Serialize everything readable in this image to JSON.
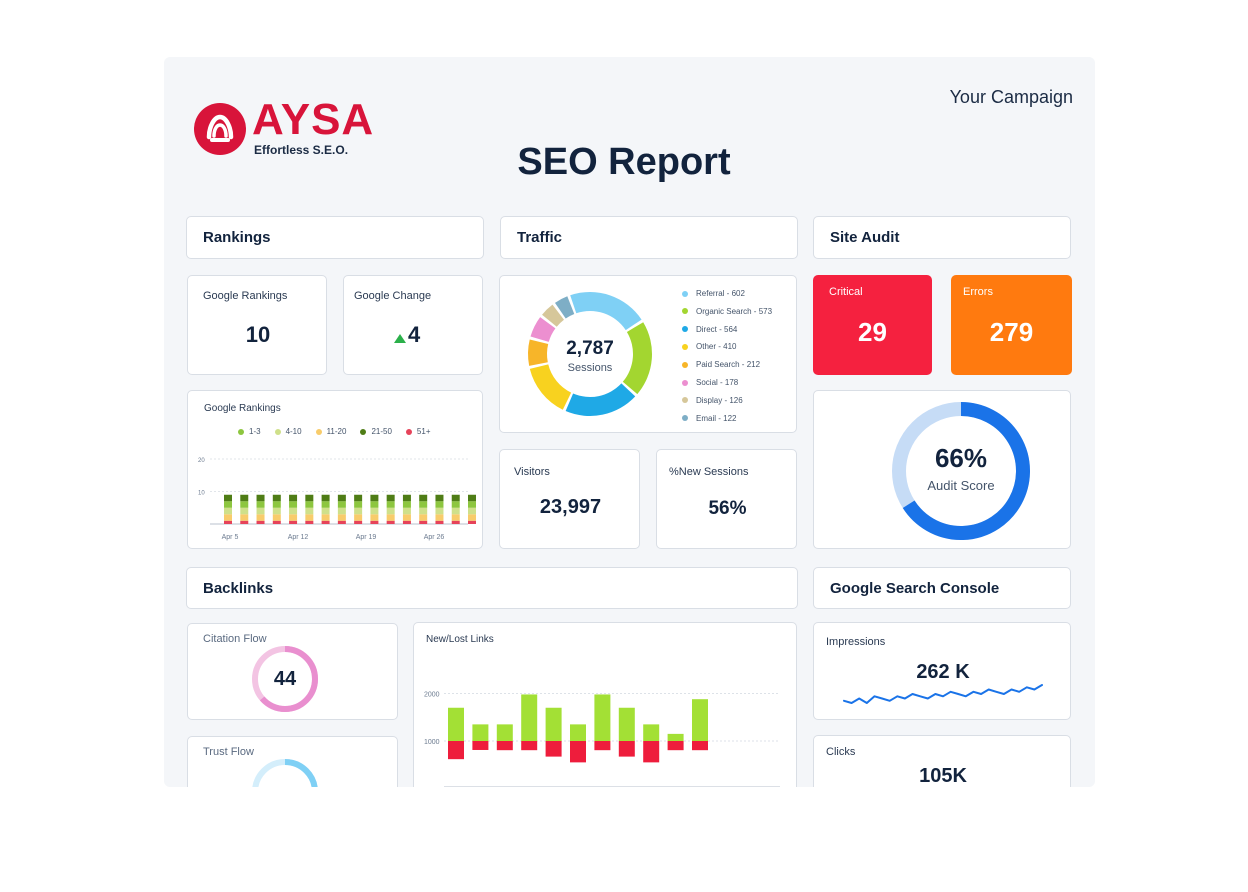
{
  "brand": {
    "name": "AYSA",
    "tagline": "Effortless S.E.O.",
    "color": "#d8143a"
  },
  "campaign_label": "Your Campaign",
  "title": "SEO Report",
  "sections": {
    "rankings": "Rankings",
    "traffic": "Traffic",
    "site_audit": "Site Audit",
    "backlinks": "Backlinks",
    "gsc": "Google Search Console"
  },
  "rankings": {
    "google_rankings": {
      "label": "Google Rankings",
      "value": "10"
    },
    "google_change": {
      "label": "Google Change",
      "value": "4",
      "direction": "up"
    },
    "chart_title": "Google Rankings",
    "legend": [
      {
        "label": "1-3",
        "color": "#8dc63f"
      },
      {
        "label": "4-10",
        "color": "#cfe08a"
      },
      {
        "label": "11-20",
        "color": "#f8cc6b"
      },
      {
        "label": "21-50",
        "color": "#4f7d16"
      },
      {
        "label": "51+",
        "color": "#e6435a"
      }
    ]
  },
  "traffic": {
    "sessions_value": "2,787",
    "sessions_label": "Sessions",
    "visitors": {
      "label": "Visitors",
      "value": "23,997"
    },
    "new_sessions": {
      "label": "%New Sessions",
      "value": "56%"
    }
  },
  "site_audit": {
    "critical": {
      "label": "Critical",
      "value": "29",
      "color": "#f5213f"
    },
    "errors": {
      "label": "Errors",
      "value": "279",
      "color": "#ff7a0f"
    },
    "score_value": "66%",
    "score_label": "Audit Score",
    "score": 0.66
  },
  "backlinks": {
    "citation_flow": {
      "label": "Citation Flow",
      "value": "44"
    },
    "trust_flow": {
      "label": "Trust Flow"
    },
    "chart_title": "New/Lost Links"
  },
  "gsc": {
    "impressions": {
      "label": "Impressions",
      "value": "262 K"
    },
    "clicks": {
      "label": "Clicks",
      "value": "105K"
    }
  },
  "chart_data": [
    {
      "type": "pie",
      "categories": [
        "Referral - 602",
        "Organic Search - 573",
        "Direct - 564",
        "Other - 410",
        "Paid Search - 212",
        "Social - 178",
        "Display - 126",
        "Email - 122"
      ],
      "values": [
        602,
        573,
        564,
        410,
        212,
        178,
        126,
        122
      ],
      "colors": [
        "#7fd0f5",
        "#a3d630",
        "#1fa9e6",
        "#f8d21f",
        "#f7b529",
        "#ec8fd0",
        "#d6c79a",
        "#7eaec6"
      ]
    },
    {
      "type": "bar",
      "title": "Google Rankings",
      "categories": [
        "",
        "",
        "",
        "",
        "",
        "",
        "",
        "",
        "",
        "",
        "",
        "",
        "",
        "",
        "",
        ""
      ],
      "tick_labels": [
        "Apr 5",
        "Apr 12",
        "Apr 19",
        "Apr 26"
      ],
      "ylim": [
        0,
        24
      ],
      "yticks": [
        10,
        20
      ],
      "series": [
        {
          "name": "51+",
          "values": [
            1,
            1,
            1,
            1,
            1,
            1,
            1,
            1,
            1,
            1,
            1,
            1,
            1,
            1,
            1,
            1
          ]
        },
        {
          "name": "11-20",
          "values": [
            2,
            2,
            2,
            2,
            2,
            2,
            2,
            2,
            2,
            2,
            2,
            2,
            2,
            2,
            2,
            2
          ]
        },
        {
          "name": "4-10",
          "values": [
            2,
            2,
            2,
            2,
            2,
            2,
            2,
            2,
            2,
            2,
            2,
            2,
            2,
            2,
            2,
            2
          ]
        },
        {
          "name": "1-3",
          "values": [
            2,
            2,
            2,
            2,
            2,
            2,
            2,
            2,
            2,
            2,
            2,
            2,
            2,
            2,
            2,
            2
          ]
        },
        {
          "name": "21-50",
          "values": [
            2,
            2,
            2,
            2,
            2,
            2,
            2,
            2,
            2,
            2,
            2,
            2,
            2,
            2,
            2,
            2
          ]
        }
      ]
    },
    {
      "type": "bar",
      "title": "New/Lost Links",
      "categories": [
        "",
        "",
        "",
        "",
        "",
        "",
        "",
        "",
        "",
        "",
        "",
        ""
      ],
      "yticks": [
        1000,
        2000
      ],
      "ylim": [
        0,
        2600
      ],
      "series": [
        {
          "name": "New",
          "color": "#a3e035",
          "values": [
            1700,
            1350,
            1350,
            1980,
            1700,
            1350,
            1980,
            1700,
            1350,
            1150,
            1880,
            0
          ]
        },
        {
          "name": "Lost",
          "color": "#ee1d3c",
          "values": [
            -850,
            -420,
            -430,
            -430,
            -730,
            -1000,
            -430,
            -730,
            -1000,
            -430,
            -430,
            0
          ]
        }
      ]
    },
    {
      "type": "line",
      "title": "Impressions",
      "values": [
        5,
        4,
        6,
        4,
        7,
        6,
        5,
        7,
        6,
        8,
        7,
        6,
        8,
        7,
        9,
        8,
        7,
        9,
        8,
        10,
        9,
        8,
        10,
        9,
        11,
        10,
        12
      ]
    }
  ]
}
